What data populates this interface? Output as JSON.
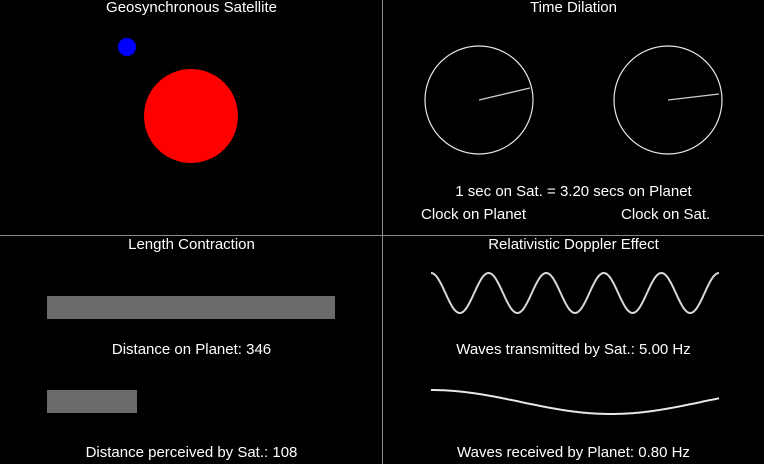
{
  "satellite_panel": {
    "title": "Geosynchronous Satellite",
    "planet_color": "#ff0000",
    "satellite_color": "#0000ff"
  },
  "time_panel": {
    "title": "Time Dilation",
    "ratio_text": "1 sec on Sat. = 3.20 secs on Planet",
    "clock_planet_label": "Clock on Planet",
    "clock_sat_label": "Clock on Sat."
  },
  "length_panel": {
    "title": "Length Contraction",
    "planet_distance_text": "Distance on Planet: 346",
    "sat_distance_text": "Distance perceived by Sat.: 108",
    "planet_distance_value": 346,
    "sat_distance_value": 108
  },
  "doppler_panel": {
    "title": "Relativistic Doppler Effect",
    "transmitted_text": "Waves transmitted by Sat.: 5.00 Hz",
    "received_text": "Waves received by Planet: 0.80 Hz",
    "transmitted_hz": 5.0,
    "received_hz": 0.8
  }
}
